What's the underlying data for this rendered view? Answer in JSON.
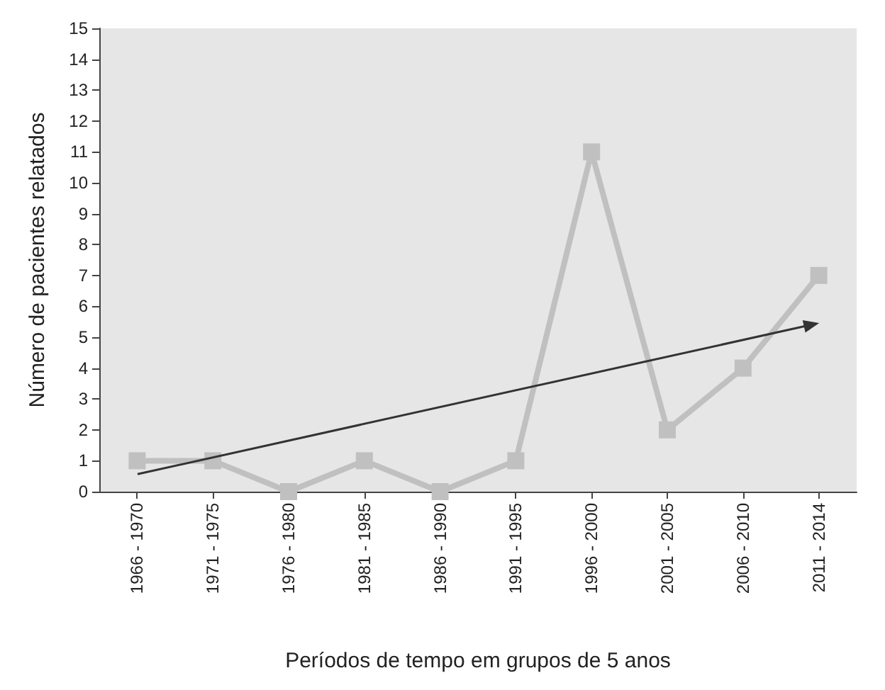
{
  "chart_data": {
    "type": "line",
    "xlabel": "Períodos de tempo em grupos de 5 anos",
    "ylabel": "Número de pacientes relatados",
    "categories": [
      "1966 - 1970",
      "1971 - 1975",
      "1976 - 1980",
      "1981 - 1985",
      "1986 - 1990",
      "1991 - 1995",
      "1996 - 2000",
      "2001 - 2005",
      "2006 - 2010",
      "2011 - 2014"
    ],
    "series": [
      {
        "color": "#c0c0c0",
        "values": [
          1,
          1,
          0,
          1,
          0,
          1,
          11,
          2,
          4,
          7
        ]
      }
    ],
    "ylim": [
      0,
      15
    ],
    "yticks": [
      0,
      1,
      2,
      3,
      4,
      5,
      6,
      7,
      8,
      9,
      10,
      11,
      12,
      13,
      14,
      15
    ],
    "grid": false,
    "marker": "square",
    "line_style": "solid"
  }
}
